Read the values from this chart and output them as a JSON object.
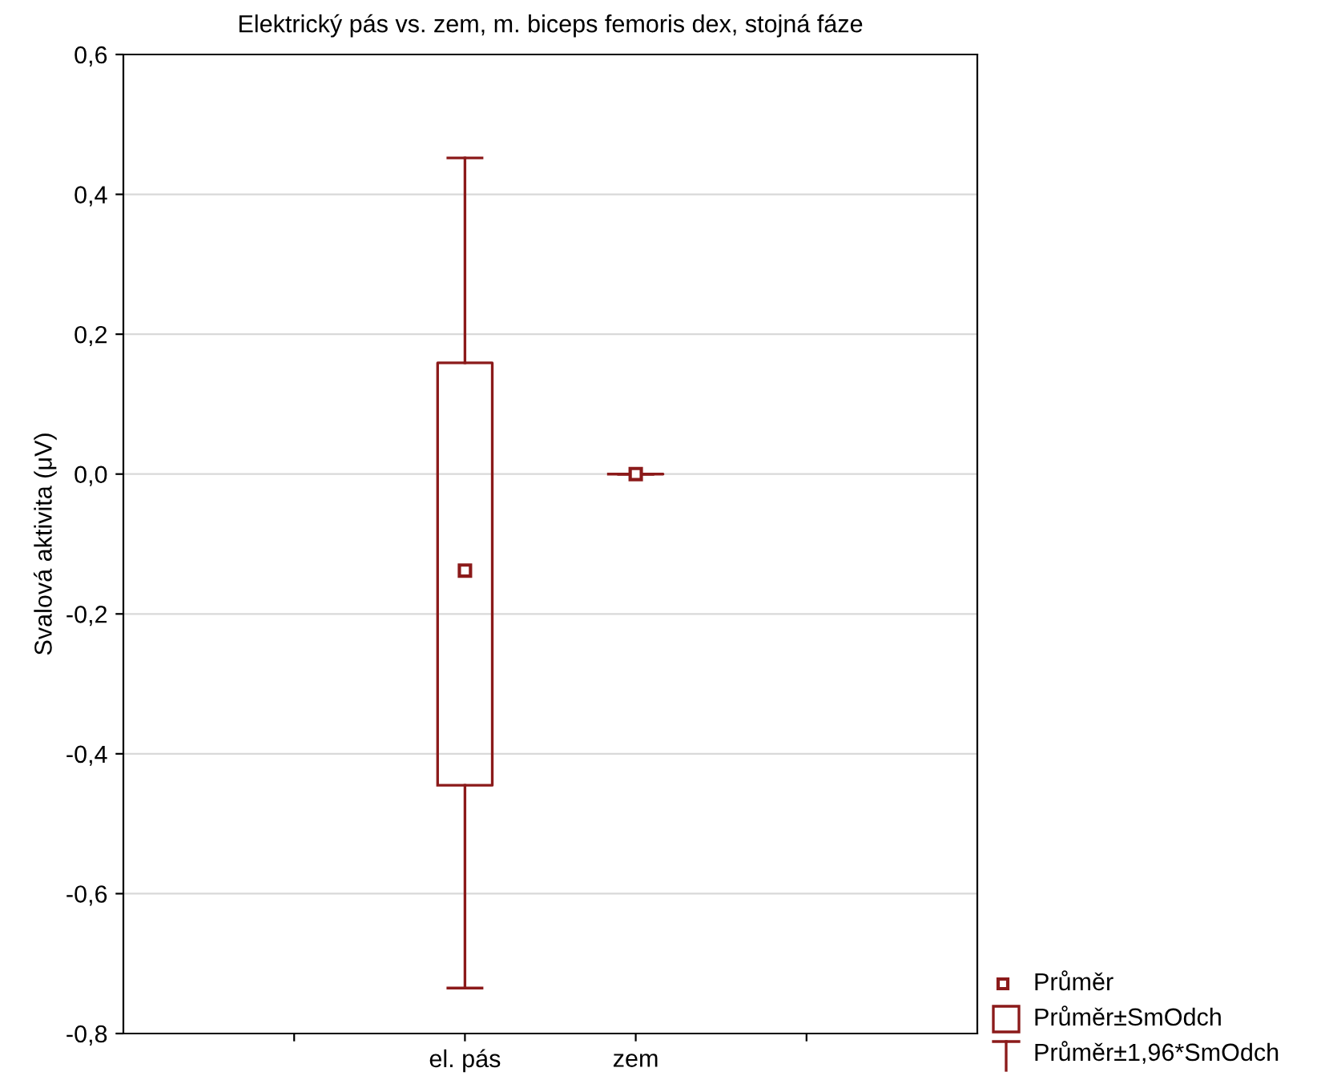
{
  "chart_data": {
    "type": "box",
    "title": "Elektrický pás vs. zem, m. biceps femoris dex, stojná fáze",
    "ylabel": "Svalová aktivita (μV)",
    "categories": [
      "el. pás",
      "zem"
    ],
    "boxes": [
      {
        "low": -0.735,
        "q1": -0.445,
        "q3": 0.159,
        "high": 0.452,
        "mean": -0.138
      },
      {
        "low": 0.0,
        "q1": 0.0,
        "q3": 0.0,
        "high": 0.0,
        "mean": 0.0
      }
    ],
    "color": "#8b1a1a",
    "ylim": [
      -0.8,
      0.6
    ],
    "yticks": [
      {
        "value": -0.8,
        "label": "-0,8"
      },
      {
        "value": -0.6,
        "label": "-0,6"
      },
      {
        "value": -0.4,
        "label": "-0,4"
      },
      {
        "value": -0.2,
        "label": "-0,2"
      },
      {
        "value": 0.0,
        "label": "0,0"
      },
      {
        "value": 0.2,
        "label": "0,2"
      },
      {
        "value": 0.4,
        "label": "0,4"
      },
      {
        "value": 0.6,
        "label": "0,6"
      }
    ],
    "grid": "y",
    "marker": "square",
    "annotations": [
      "Průměr",
      "Průměr±SmOdch",
      "Průměr±1,96*SmOdch"
    ]
  }
}
